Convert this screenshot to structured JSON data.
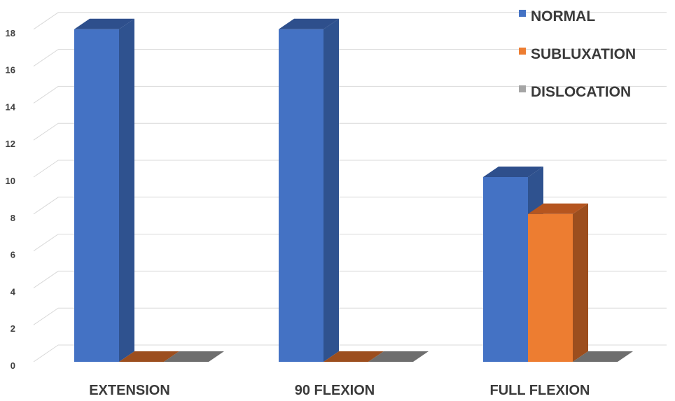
{
  "chart_data": {
    "type": "bar",
    "categories": [
      "EXTENSION",
      "90 FLEXION",
      "FULL FLEXION"
    ],
    "series": [
      {
        "name": "NORMAL",
        "values": [
          18,
          18,
          10
        ],
        "color": "#4472C4",
        "side_color": "#2F528F",
        "top_color": "#2E4F8C"
      },
      {
        "name": "SUBLUXATION",
        "values": [
          0,
          0,
          8
        ],
        "color": "#ED7D31",
        "side_color": "#9C4E1E",
        "top_color": "#B5551F"
      },
      {
        "name": "DISLOCATION",
        "values": [
          0,
          0,
          0
        ],
        "color": "#A5A5A5",
        "side_color": "#6E6E6E",
        "top_color": "#7F7F7F"
      }
    ],
    "yticks": [
      "0",
      "2",
      "4",
      "6",
      "8",
      "10",
      "12",
      "14",
      "16",
      "18"
    ],
    "ylim": [
      0,
      18
    ],
    "grid": true,
    "legend_position": "top-right",
    "projection": "3d-perspective"
  }
}
